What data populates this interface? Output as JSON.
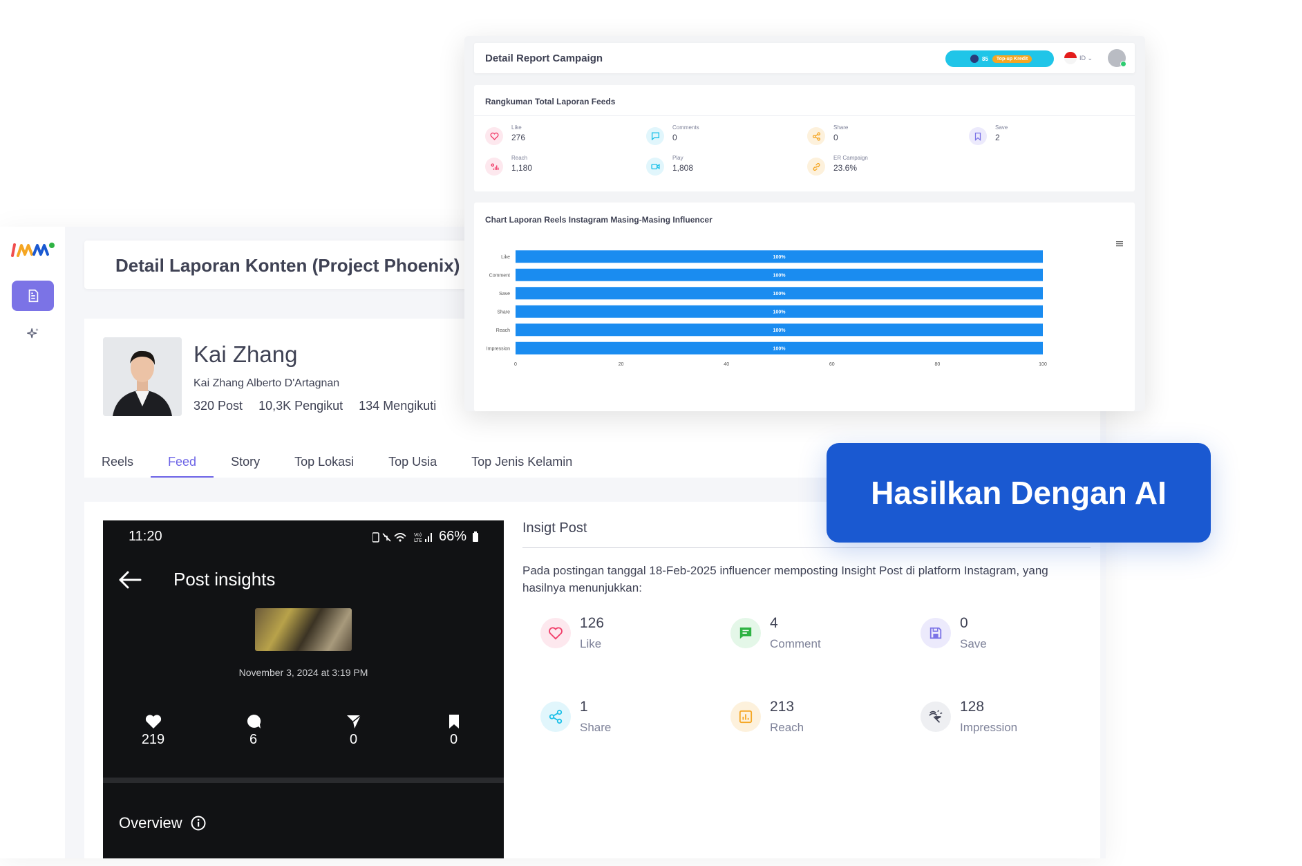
{
  "app": {
    "page_title": "Detail Laporan Konten (Project Phoenix)",
    "profile": {
      "name": "Kai Zhang",
      "full_name": "Kai Zhang Alberto D'Artagnan",
      "posts": "320 Post",
      "followers": "10,3K Pengikut",
      "following": "134 Mengikuti"
    },
    "tabs": [
      {
        "label": "Reels",
        "active": false
      },
      {
        "label": "Feed",
        "active": true
      },
      {
        "label": "Story",
        "active": false
      },
      {
        "label": "Top Lokasi",
        "active": false
      },
      {
        "label": "Top Usia",
        "active": false
      },
      {
        "label": "Top Jenis Kelamin",
        "active": false
      }
    ],
    "accent_color": "#6c63e6"
  },
  "phone": {
    "time": "11:20",
    "battery": "66%",
    "title": "Post insights",
    "date": "November 3, 2024 at 3:19 PM",
    "metrics": [
      {
        "icon": "heart-icon",
        "value": "219"
      },
      {
        "icon": "comment-icon",
        "value": "6"
      },
      {
        "icon": "send-icon",
        "value": "0"
      },
      {
        "icon": "bookmark-icon",
        "value": "0"
      }
    ],
    "overview": "Overview"
  },
  "insight": {
    "title": "Insigt Post",
    "description": "Pada postingan tanggal 18-Feb-2025 influencer memposting Insight Post di platform Instagram, yang hasilnya menunjukkan:",
    "metrics": [
      {
        "icon": "heart-icon",
        "value": "126",
        "label": "Like",
        "color": "#f1416c",
        "bg": "#fde8ee"
      },
      {
        "icon": "comment-icon",
        "value": "4",
        "label": "Comment",
        "color": "#2fb344",
        "bg": "#e4f7e8"
      },
      {
        "icon": "save-icon",
        "value": "0",
        "label": "Save",
        "color": "#7b73e6",
        "bg": "#eceafc"
      },
      {
        "icon": "share-icon",
        "value": "1",
        "label": "Share",
        "color": "#1bc0e8",
        "bg": "#e1f6fc"
      },
      {
        "icon": "reach-icon",
        "value": "213",
        "label": "Reach",
        "color": "#f5a623",
        "bg": "#fdf1dc"
      },
      {
        "icon": "impression-icon",
        "value": "128",
        "label": "Impression",
        "color": "#3f4254",
        "bg": "#eeeff2"
      }
    ]
  },
  "report": {
    "title": "Detail Report Campaign",
    "credit": "85",
    "topup": "Top-up Kredit",
    "lang": "ID",
    "summary_title": "Rangkuman Total Laporan Feeds",
    "summary": [
      {
        "icon": "heart-icon",
        "label": "Like",
        "value": "276",
        "color": "#f1416c",
        "bg": "#fde8ee"
      },
      {
        "icon": "comment-icon",
        "label": "Comments",
        "value": "0",
        "color": "#1bc0e8",
        "bg": "#e1f6fc"
      },
      {
        "icon": "share-icon",
        "label": "Share",
        "value": "0",
        "color": "#f5a623",
        "bg": "#fdf1dc"
      },
      {
        "icon": "bookmark-icon",
        "label": "Save",
        "value": "2",
        "color": "#7b73e6",
        "bg": "#eceafc"
      },
      {
        "icon": "reach-icon",
        "label": "Reach",
        "value": "1,180",
        "color": "#f1416c",
        "bg": "#fde8ee"
      },
      {
        "icon": "play-icon",
        "label": "Play",
        "value": "1,808",
        "color": "#1bc0e8",
        "bg": "#e1f6fc"
      },
      {
        "icon": "link-icon",
        "label": "ER Campaign",
        "value": "23.6%",
        "color": "#f5a623",
        "bg": "#fdf1dc"
      }
    ],
    "chart_title": "Chart Laporan Reels Instagram Masing-Masing Influencer"
  },
  "chart_data": {
    "type": "bar",
    "orientation": "horizontal",
    "categories": [
      "Like",
      "Comment",
      "Save",
      "Share",
      "Reach",
      "Impression"
    ],
    "values": [
      100,
      100,
      100,
      100,
      100,
      100
    ],
    "data_labels": [
      "100%",
      "100%",
      "100%",
      "100%",
      "100%",
      "100%"
    ],
    "xlim": [
      0,
      100
    ],
    "xticks": [
      0,
      20,
      40,
      60,
      80,
      100
    ],
    "bar_color": "#1a8cf0",
    "grid": false,
    "title": "Chart Laporan Reels Instagram Masing-Masing Influencer"
  },
  "cta": {
    "label": "Hasilkan Dengan AI",
    "color": "#1a59d1"
  }
}
